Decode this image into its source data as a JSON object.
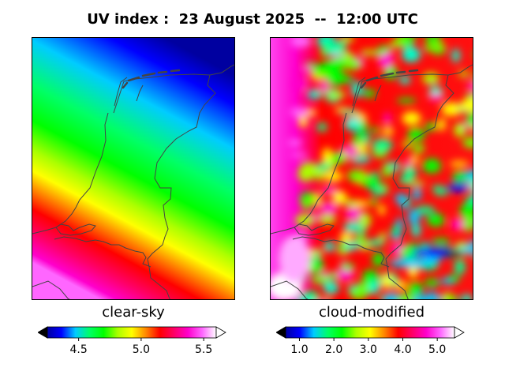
{
  "title": "UV index :  23 August 2025  --  12:00 UTC",
  "panels": [
    {
      "label": "clear-sky",
      "colorbar": {
        "min": 4.25,
        "max": 5.6,
        "ticks": [
          4.5,
          5.0,
          5.5
        ],
        "tick_labels": [
          "4.5",
          "5.0",
          "5.5"
        ],
        "extend": "both"
      }
    },
    {
      "label": "cloud-modified",
      "colorbar": {
        "min": 0.6,
        "max": 5.5,
        "ticks": [
          1.0,
          2.0,
          3.0,
          4.0,
          5.0
        ],
        "tick_labels": [
          "1.0",
          "2.0",
          "3.0",
          "4.0",
          "5.0"
        ],
        "extend": "both"
      }
    }
  ],
  "colormap": [
    "#000000",
    "#0000a0",
    "#0000ff",
    "#00ccff",
    "#00ff66",
    "#00ff00",
    "#aaff00",
    "#ffff00",
    "#ff8800",
    "#ff0000",
    "#ff0066",
    "#ff00cc",
    "#ff66ff",
    "#ffffff"
  ],
  "outline_color": "#444444"
}
